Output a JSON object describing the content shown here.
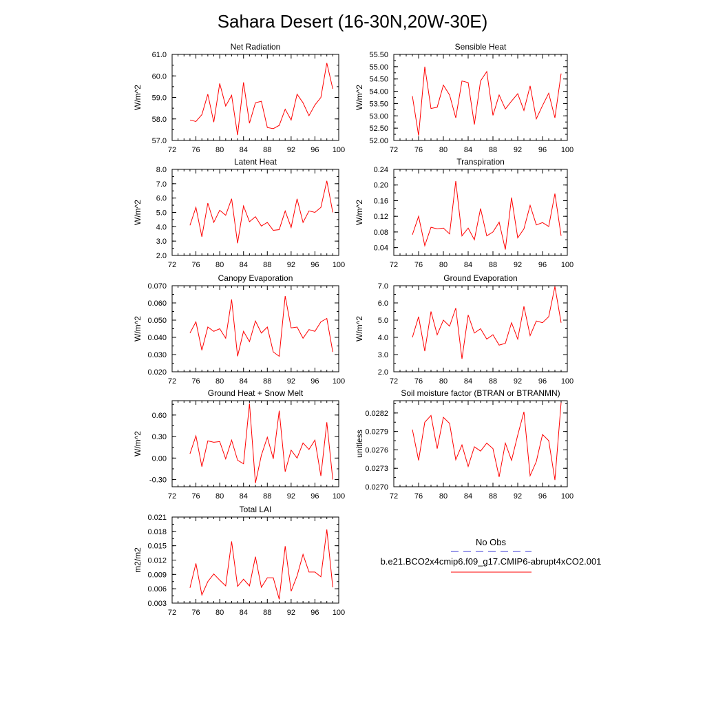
{
  "page": {
    "title": "Sahara Desert (16-30N,20W-30E)"
  },
  "legend": {
    "obs_label": "No Obs",
    "case_label": "b.e21.BCO2x4cmip6.f09_g17.CMIP6-abrupt4xCO2.001",
    "obs_color": "#3a3ad6",
    "case_color": "#ff0000"
  },
  "colors": {
    "line": "#ff0000",
    "axis": "#000000"
  },
  "chart_data": [
    {
      "type": "line",
      "title": "Net Radiation",
      "ylabel": "W/m^2",
      "xlim": [
        72,
        100
      ],
      "xticks": [
        "72",
        "76",
        "80",
        "84",
        "88",
        "92",
        "96",
        "100"
      ],
      "ylim": [
        57.0,
        61.0
      ],
      "yticks": [
        "57.0",
        "58.0",
        "59.0",
        "60.0",
        "61.0"
      ],
      "x": [
        75,
        76,
        77,
        78,
        79,
        80,
        81,
        82,
        83,
        84,
        85,
        86,
        87,
        88,
        89,
        90,
        91,
        92,
        93,
        94,
        95,
        96,
        97,
        98,
        99
      ],
      "series": [
        {
          "values": [
            57.95,
            57.88,
            58.2,
            59.15,
            57.85,
            59.65,
            58.6,
            59.1,
            57.25,
            59.7,
            57.8,
            58.75,
            58.82,
            57.6,
            57.55,
            57.7,
            58.45,
            57.95,
            59.15,
            58.75,
            58.15,
            58.65,
            59.0,
            60.6,
            59.4
          ]
        }
      ]
    },
    {
      "type": "line",
      "title": "Sensible Heat",
      "ylabel": "W/m^2",
      "xlim": [
        72,
        100
      ],
      "xticks": [
        "72",
        "76",
        "80",
        "84",
        "88",
        "92",
        "96",
        "100"
      ],
      "ylim": [
        52.0,
        55.5
      ],
      "yticks": [
        "52.00",
        "52.50",
        "53.00",
        "53.50",
        "54.00",
        "54.50",
        "55.00",
        "55.50"
      ],
      "x": [
        75,
        76,
        77,
        78,
        79,
        80,
        81,
        82,
        83,
        84,
        85,
        86,
        87,
        88,
        89,
        90,
        91,
        92,
        93,
        94,
        95,
        96,
        97,
        98,
        99
      ],
      "series": [
        {
          "values": [
            53.8,
            52.2,
            55.0,
            53.3,
            53.35,
            54.25,
            53.85,
            52.92,
            54.42,
            54.35,
            52.65,
            54.42,
            54.8,
            53.02,
            53.85,
            53.28,
            53.6,
            53.9,
            53.22,
            54.22,
            52.88,
            53.42,
            53.92,
            52.92,
            54.72
          ]
        }
      ]
    },
    {
      "type": "line",
      "title": "Latent Heat",
      "ylabel": "W/m^2",
      "xlim": [
        72,
        100
      ],
      "xticks": [
        "72",
        "76",
        "80",
        "84",
        "88",
        "92",
        "96",
        "100"
      ],
      "ylim": [
        2.0,
        8.0
      ],
      "yticks": [
        "2.0",
        "3.0",
        "4.0",
        "5.0",
        "6.0",
        "7.0",
        "8.0"
      ],
      "x": [
        75,
        76,
        77,
        78,
        79,
        80,
        81,
        82,
        83,
        84,
        85,
        86,
        87,
        88,
        89,
        90,
        91,
        92,
        93,
        94,
        95,
        96,
        97,
        98,
        99
      ],
      "series": [
        {
          "values": [
            4.1,
            5.35,
            3.3,
            5.65,
            4.3,
            5.15,
            4.8,
            5.95,
            2.85,
            5.45,
            4.35,
            4.7,
            4.05,
            4.3,
            3.75,
            3.8,
            5.1,
            3.95,
            5.95,
            4.3,
            5.1,
            5.0,
            5.35,
            7.2,
            5.0
          ]
        }
      ]
    },
    {
      "type": "line",
      "title": "Transpiration",
      "ylabel": "W/m^2",
      "xlim": [
        72,
        100
      ],
      "xticks": [
        "72",
        "76",
        "80",
        "84",
        "88",
        "92",
        "96",
        "100"
      ],
      "ylim": [
        0.02,
        0.24
      ],
      "yticks": [
        "0.04",
        "0.08",
        "0.12",
        "0.16",
        "0.20",
        "0.24"
      ],
      "x": [
        75,
        76,
        77,
        78,
        79,
        80,
        81,
        82,
        83,
        84,
        85,
        86,
        87,
        88,
        89,
        90,
        91,
        92,
        93,
        94,
        95,
        96,
        97,
        98,
        99
      ],
      "series": [
        {
          "values": [
            0.073,
            0.12,
            0.045,
            0.092,
            0.088,
            0.09,
            0.075,
            0.21,
            0.07,
            0.09,
            0.06,
            0.14,
            0.07,
            0.08,
            0.105,
            0.035,
            0.168,
            0.065,
            0.088,
            0.148,
            0.098,
            0.104,
            0.094,
            0.178,
            0.07
          ]
        }
      ]
    },
    {
      "type": "line",
      "title": "Canopy Evaporation",
      "ylabel": "W/m^2",
      "xlim": [
        72,
        100
      ],
      "xticks": [
        "72",
        "76",
        "80",
        "84",
        "88",
        "92",
        "96",
        "100"
      ],
      "ylim": [
        0.02,
        0.07
      ],
      "yticks": [
        "0.020",
        "0.030",
        "0.040",
        "0.050",
        "0.060",
        "0.070"
      ],
      "x": [
        75,
        76,
        77,
        78,
        79,
        80,
        81,
        82,
        83,
        84,
        85,
        86,
        87,
        88,
        89,
        90,
        91,
        92,
        93,
        94,
        95,
        96,
        97,
        98,
        99
      ],
      "series": [
        {
          "values": [
            0.0425,
            0.049,
            0.0325,
            0.046,
            0.0435,
            0.045,
            0.0395,
            0.062,
            0.029,
            0.0435,
            0.0375,
            0.0495,
            0.0425,
            0.046,
            0.0315,
            0.029,
            0.064,
            0.0455,
            0.046,
            0.0395,
            0.0445,
            0.0435,
            0.049,
            0.051,
            0.0315
          ]
        }
      ]
    },
    {
      "type": "line",
      "title": "Ground Evaporation",
      "ylabel": "W/m^2",
      "xlim": [
        72,
        100
      ],
      "xticks": [
        "72",
        "76",
        "80",
        "84",
        "88",
        "92",
        "96",
        "100"
      ],
      "ylim": [
        2.0,
        7.0
      ],
      "yticks": [
        "2.0",
        "3.0",
        "4.0",
        "5.0",
        "6.0",
        "7.0"
      ],
      "x": [
        75,
        76,
        77,
        78,
        79,
        80,
        81,
        82,
        83,
        84,
        85,
        86,
        87,
        88,
        89,
        90,
        91,
        92,
        93,
        94,
        95,
        96,
        97,
        98,
        99
      ],
      "series": [
        {
          "values": [
            4.0,
            5.2,
            3.2,
            5.5,
            4.15,
            5.0,
            4.65,
            5.7,
            2.75,
            5.3,
            4.25,
            4.5,
            3.9,
            4.15,
            3.55,
            3.65,
            4.85,
            3.9,
            5.8,
            4.1,
            4.95,
            4.85,
            5.2,
            6.95,
            4.85
          ]
        }
      ]
    },
    {
      "type": "line",
      "title": "Ground Heat + Snow Melt",
      "ylabel": "W/m^2",
      "xlim": [
        72,
        100
      ],
      "xticks": [
        "72",
        "76",
        "80",
        "84",
        "88",
        "92",
        "96",
        "100"
      ],
      "ylim": [
        -0.4,
        0.8
      ],
      "yticks": [
        "-0.30",
        "0.00",
        "0.30",
        "0.60"
      ],
      "x": [
        75,
        76,
        77,
        78,
        79,
        80,
        81,
        82,
        83,
        84,
        85,
        86,
        87,
        88,
        89,
        90,
        91,
        92,
        93,
        94,
        95,
        96,
        97,
        98,
        99
      ],
      "series": [
        {
          "values": [
            0.06,
            0.31,
            -0.12,
            0.24,
            0.22,
            0.23,
            -0.01,
            0.25,
            -0.03,
            -0.08,
            0.76,
            -0.35,
            0.04,
            0.29,
            -0.01,
            0.66,
            -0.19,
            0.11,
            0.0,
            0.21,
            0.12,
            0.25,
            -0.25,
            0.5,
            -0.3
          ]
        }
      ]
    },
    {
      "type": "line",
      "title": "Soil moisture factor (BTRAN or BTRANMN)",
      "ylabel": "unitless",
      "xlim": [
        72,
        100
      ],
      "xticks": [
        "72",
        "76",
        "80",
        "84",
        "88",
        "92",
        "96",
        "100"
      ],
      "ylim": [
        0.027,
        0.0284
      ],
      "yticks": [
        "0.0270",
        "0.0273",
        "0.0276",
        "0.0279",
        "0.0282"
      ],
      "x": [
        75,
        76,
        77,
        78,
        79,
        80,
        81,
        82,
        83,
        84,
        85,
        86,
        87,
        88,
        89,
        90,
        91,
        92,
        93,
        94,
        95,
        96,
        97,
        98,
        99
      ],
      "series": [
        {
          "values": [
            0.02793,
            0.02743,
            0.02805,
            0.02816,
            0.02762,
            0.02813,
            0.02803,
            0.02744,
            0.02768,
            0.02733,
            0.02765,
            0.02758,
            0.02771,
            0.02762,
            0.02716,
            0.02771,
            0.02743,
            0.02784,
            0.02822,
            0.02718,
            0.02741,
            0.02785,
            0.02775,
            0.02711,
            0.02837
          ]
        }
      ]
    },
    {
      "type": "line",
      "title": "Total LAI",
      "ylabel": "m2/m2",
      "xlim": [
        72,
        100
      ],
      "xticks": [
        "72",
        "76",
        "80",
        "84",
        "88",
        "92",
        "96",
        "100"
      ],
      "ylim": [
        0.003,
        0.021
      ],
      "yticks": [
        "0.003",
        "0.006",
        "0.009",
        "0.012",
        "0.015",
        "0.018",
        "0.021"
      ],
      "x": [
        75,
        76,
        77,
        78,
        79,
        80,
        81,
        82,
        83,
        84,
        85,
        86,
        87,
        88,
        89,
        90,
        91,
        92,
        93,
        94,
        95,
        96,
        97,
        98,
        99
      ],
      "series": [
        {
          "values": [
            0.0062,
            0.0113,
            0.0047,
            0.0075,
            0.0091,
            0.0078,
            0.0066,
            0.0159,
            0.0065,
            0.008,
            0.0066,
            0.0127,
            0.0063,
            0.0083,
            0.0083,
            0.0038,
            0.0149,
            0.0055,
            0.0087,
            0.0132,
            0.0095,
            0.0095,
            0.0085,
            0.0184,
            0.0063
          ]
        }
      ]
    }
  ]
}
